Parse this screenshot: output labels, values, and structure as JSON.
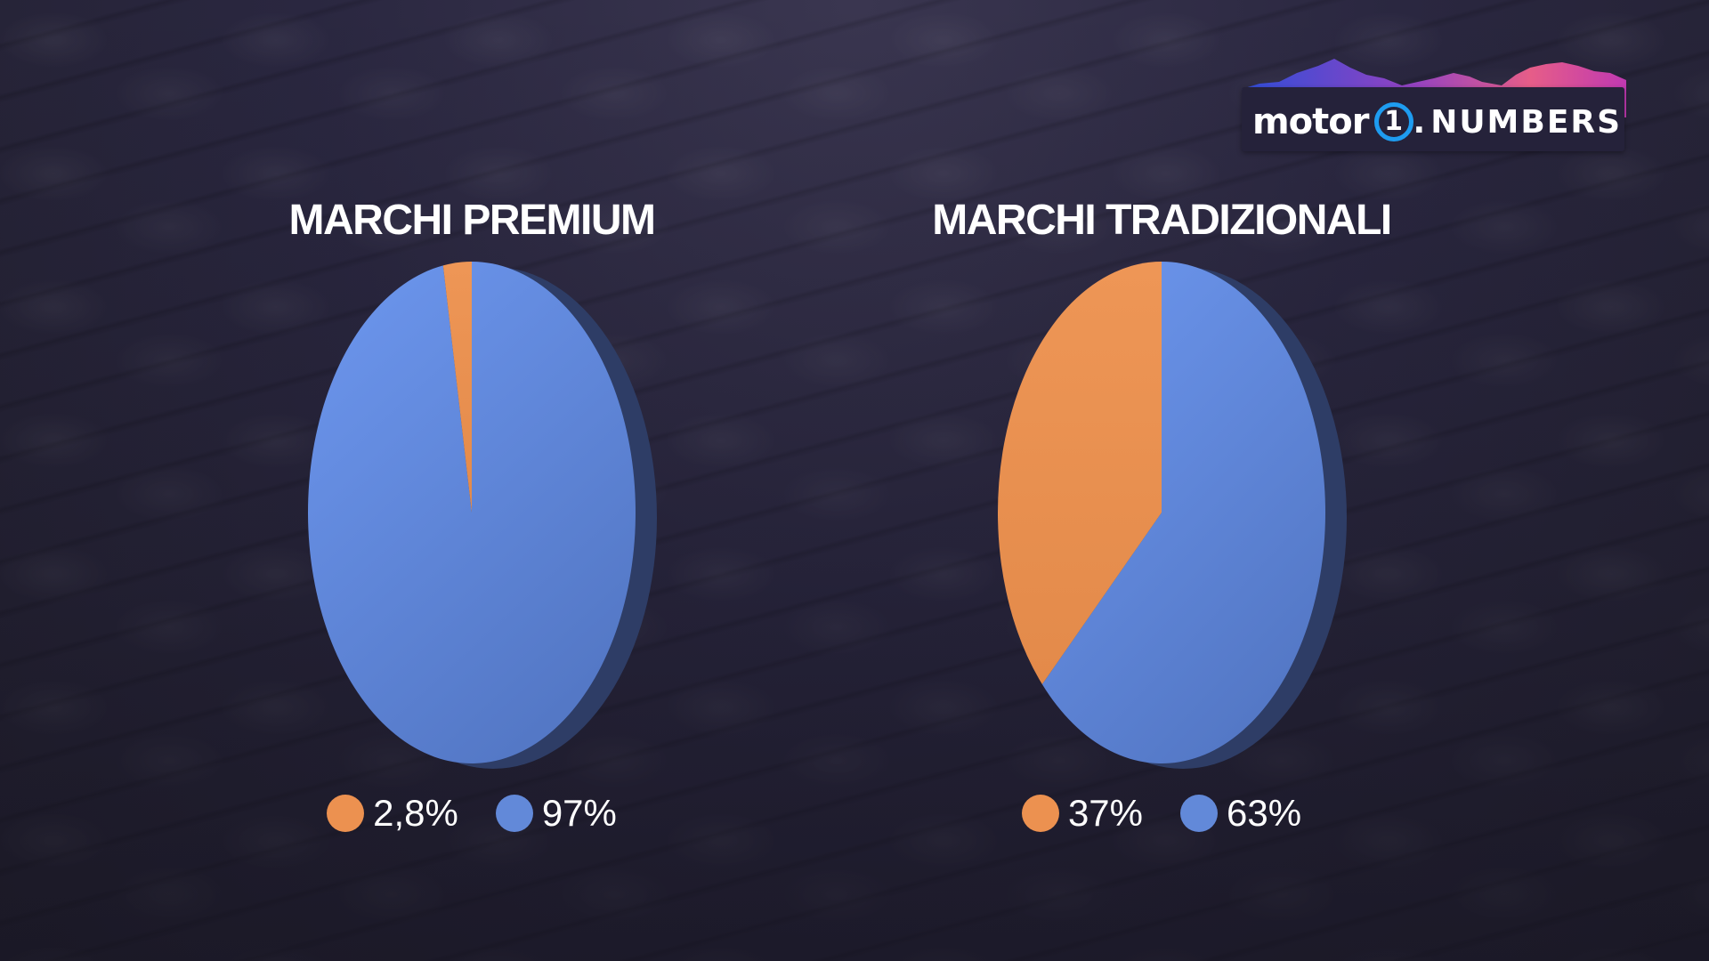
{
  "brand": {
    "logo_motor": "motor",
    "logo_one": "1",
    "logo_numbers": "NUMBERS"
  },
  "colors": {
    "orange": "#ec9150",
    "blue": "#6289d9",
    "blue_dark": "#2e3d66"
  },
  "chart_data": [
    {
      "type": "pie",
      "title": "MARCHI PREMIUM",
      "slices": [
        {
          "label": "2,8%",
          "value": 2.8,
          "color": "#ec9150"
        },
        {
          "label": "97%",
          "value": 97.2,
          "color": "#6289d9"
        }
      ]
    },
    {
      "type": "pie",
      "title": "MARCHI TRADIZIONALI",
      "slices": [
        {
          "label": "37%",
          "value": 37,
          "color": "#ec9150"
        },
        {
          "label": "63%",
          "value": 63,
          "color": "#6289d9"
        }
      ]
    }
  ]
}
